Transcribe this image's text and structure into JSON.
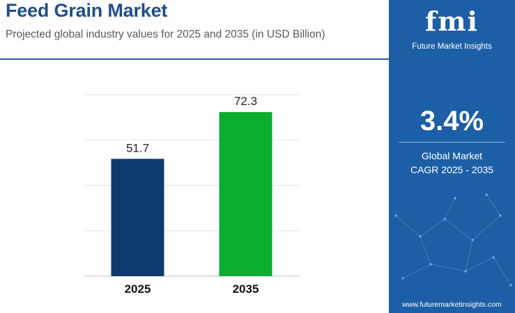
{
  "header": {
    "title": "Feed Grain Market",
    "subtitle": "Projected global industry values for 2025 and 2035 (in USD Billion)"
  },
  "chart_data": {
    "type": "bar",
    "categories": [
      "2025",
      "2035"
    ],
    "values": [
      51.7,
      72.3
    ],
    "data_labels": [
      "51.7",
      "72.3"
    ],
    "colors": [
      "#0f3a6e",
      "#0aad2e"
    ],
    "ylim": [
      0,
      80
    ],
    "grid": true,
    "title": "",
    "xlabel": "",
    "ylabel": ""
  },
  "panel": {
    "logo_text": "fmi",
    "logo_tagline": "Future Market Insights",
    "cagr_value": "3.4%",
    "cagr_label_line1": "Global Market",
    "cagr_label_line2": "CAGR 2025 - 2035",
    "website": "www.futuremarketinsights.com",
    "background_color": "#1d5fa6"
  }
}
